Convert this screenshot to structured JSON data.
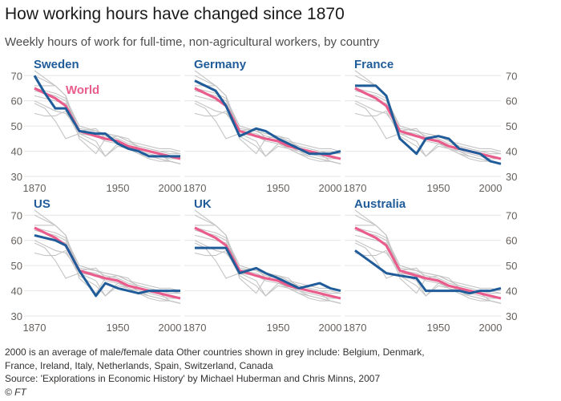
{
  "title": "How working hours have changed since 1870",
  "subtitle": "Weekly hours of work for full-time, non-agricultural workers, by country",
  "notes": "2000 is an average of male/female data    Other countries shown in grey include: Belgium, Denmark, France, Ireland, Italy, Netherlands, Spain, Switzerland, Canada",
  "source": "Source: 'Explorations in Economic History' by Michael Huberman and Chris Minns, 2007",
  "credit": "© FT",
  "colors": {
    "highlight": "#1f5c99",
    "world": "#e95d8c",
    "others": "#c4c4c4",
    "grid": "#e6e6e6"
  },
  "chart_data": {
    "type": "line",
    "layout": "small-multiples 3x2",
    "x_range": [
      1860,
      2010
    ],
    "x_ticks": [
      "1870",
      "1950",
      "2000"
    ],
    "x_tick_values": [
      1870,
      1950,
      2000
    ],
    "ylim": [
      30,
      72
    ],
    "y_ticks": [
      "30",
      "40",
      "50",
      "60",
      "70"
    ],
    "y_tick_values": [
      30,
      40,
      50,
      60,
      70
    ],
    "x": [
      1870,
      1880,
      1890,
      1900,
      1913,
      1929,
      1938,
      1950,
      1960,
      1970,
      1980,
      1990,
      2000,
      2010
    ],
    "world_label": "World",
    "world": [
      65,
      63,
      61,
      58,
      48,
      46,
      45,
      44,
      42,
      41,
      40,
      39,
      38,
      37
    ],
    "others": [
      {
        "name": "Belgium",
        "values": [
          72,
          69,
          66,
          62,
          47,
          44,
          38,
          42,
          41,
          39,
          37,
          36,
          36,
          35
        ]
      },
      {
        "name": "Denmark",
        "values": [
          60,
          58,
          56,
          55,
          48,
          47,
          45,
          44,
          41,
          39,
          38,
          37,
          36,
          35
        ]
      },
      {
        "name": "France",
        "values": [
          66,
          66,
          66,
          62,
          45,
          39,
          45,
          46,
          45,
          41,
          40,
          39,
          36,
          35
        ]
      },
      {
        "name": "Ireland",
        "values": [
          64,
          63,
          62,
          60,
          50,
          48,
          46,
          45,
          43,
          42,
          41,
          40,
          39,
          39
        ]
      },
      {
        "name": "Italy",
        "values": [
          55,
          54,
          54,
          56,
          46,
          42,
          38,
          43,
          42,
          41,
          40,
          39,
          38,
          37
        ]
      },
      {
        "name": "Netherlands",
        "values": [
          70,
          68,
          66,
          62,
          48,
          49,
          45,
          44,
          42,
          40,
          38,
          37,
          36,
          35
        ]
      },
      {
        "name": "Spain",
        "values": [
          62,
          61,
          60,
          59,
          49,
          48,
          47,
          46,
          44,
          42,
          41,
          40,
          40,
          39
        ]
      },
      {
        "name": "Switzerland",
        "values": [
          65,
          64,
          63,
          61,
          50,
          48,
          47,
          46,
          44,
          43,
          42,
          41,
          41,
          40
        ]
      },
      {
        "name": "Canada",
        "values": [
          59,
          57,
          52,
          45,
          47,
          46,
          44,
          43,
          41,
          40,
          39,
          38,
          37,
          37
        ]
      }
    ],
    "panels": [
      {
        "country": "Sweden",
        "values": [
          70,
          63,
          57,
          57,
          48,
          47,
          47,
          43,
          41,
          40,
          38,
          38,
          38,
          38
        ]
      },
      {
        "country": "Germany",
        "values": [
          68,
          66,
          64,
          58,
          46,
          49,
          48,
          45,
          43,
          41,
          39,
          39,
          39,
          40
        ]
      },
      {
        "country": "France",
        "values": [
          66,
          66,
          66,
          62,
          45,
          39,
          45,
          46,
          45,
          41,
          40,
          39,
          36,
          35
        ]
      },
      {
        "country": "US",
        "values": [
          62,
          61,
          60,
          58,
          48,
          38,
          43,
          41,
          40,
          39,
          40,
          40,
          40,
          40
        ]
      },
      {
        "country": "UK",
        "values": [
          57,
          57,
          57,
          57,
          47,
          49,
          47,
          45,
          43,
          41,
          42,
          43,
          41,
          40
        ]
      },
      {
        "country": "Australia",
        "values": [
          56,
          53,
          50,
          47,
          46,
          45,
          40,
          40,
          40,
          40,
          39,
          40,
          40,
          41
        ]
      }
    ]
  }
}
